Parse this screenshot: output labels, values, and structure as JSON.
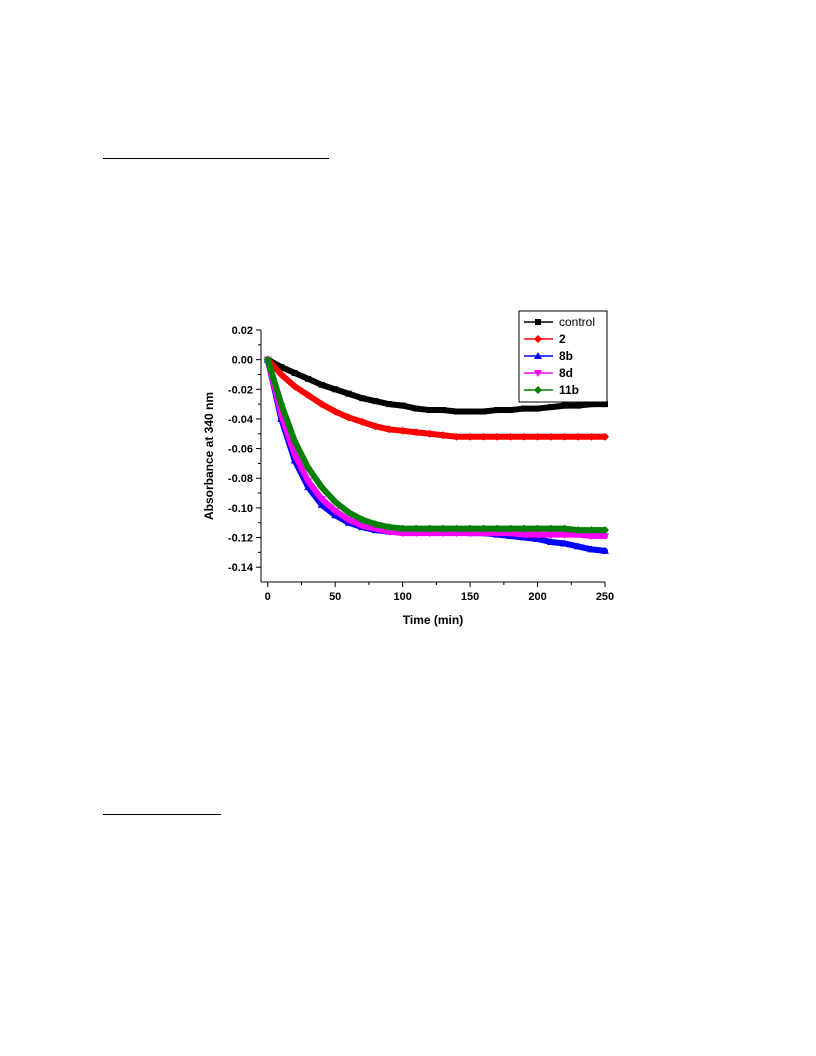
{
  "chart_data": {
    "type": "line",
    "xlabel": "Time (min)",
    "ylabel": "Absorbance at 340 nm",
    "xlim": [
      -5,
      250
    ],
    "ylim": [
      -0.15,
      0.02
    ],
    "x_ticks": [
      0,
      50,
      100,
      150,
      200,
      250
    ],
    "x_tick_labels": [
      "0",
      "50",
      "100",
      "150",
      "200",
      "250"
    ],
    "y_ticks": [
      0.02,
      0.0,
      -0.02,
      -0.04,
      -0.06,
      -0.08,
      -0.1,
      -0.12,
      -0.14
    ],
    "y_tick_labels": [
      "0.02",
      "0.00",
      "-0.02",
      "-0.04",
      "-0.06",
      "-0.08",
      "-0.10",
      "-0.12",
      "-0.14"
    ],
    "grid": false,
    "legend_position": "top-right",
    "x": [
      0,
      10,
      20,
      30,
      40,
      50,
      60,
      70,
      80,
      90,
      100,
      110,
      120,
      130,
      140,
      150,
      160,
      170,
      180,
      190,
      200,
      210,
      220,
      230,
      240,
      250
    ],
    "series": [
      {
        "name": "control",
        "color": "#000000",
        "marker": "square",
        "values": [
          0.0,
          -0.005,
          -0.009,
          -0.013,
          -0.017,
          -0.02,
          -0.023,
          -0.026,
          -0.028,
          -0.03,
          -0.031,
          -0.033,
          -0.034,
          -0.034,
          -0.035,
          -0.035,
          -0.035,
          -0.034,
          -0.034,
          -0.033,
          -0.033,
          -0.032,
          -0.031,
          -0.031,
          -0.03,
          -0.03
        ]
      },
      {
        "name": "2",
        "color": "#ff0000",
        "marker": "diamond",
        "values": [
          0.0,
          -0.01,
          -0.018,
          -0.024,
          -0.03,
          -0.035,
          -0.039,
          -0.042,
          -0.045,
          -0.047,
          -0.048,
          -0.049,
          -0.05,
          -0.051,
          -0.052,
          -0.052,
          -0.052,
          -0.052,
          -0.052,
          -0.052,
          -0.052,
          -0.052,
          -0.052,
          -0.052,
          -0.052,
          -0.052
        ]
      },
      {
        "name": "8b",
        "color": "#0000ff",
        "marker": "triangle-up",
        "values": [
          0.0,
          -0.04,
          -0.068,
          -0.086,
          -0.098,
          -0.105,
          -0.11,
          -0.113,
          -0.115,
          -0.116,
          -0.116,
          -0.116,
          -0.116,
          -0.116,
          -0.116,
          -0.117,
          -0.117,
          -0.118,
          -0.119,
          -0.12,
          -0.121,
          -0.123,
          -0.124,
          -0.126,
          -0.128,
          -0.129
        ]
      },
      {
        "name": "8d",
        "color": "#ff00ff",
        "marker": "triangle-down",
        "values": [
          0.0,
          -0.037,
          -0.064,
          -0.082,
          -0.094,
          -0.102,
          -0.108,
          -0.112,
          -0.114,
          -0.116,
          -0.117,
          -0.117,
          -0.117,
          -0.117,
          -0.117,
          -0.117,
          -0.117,
          -0.117,
          -0.117,
          -0.118,
          -0.118,
          -0.118,
          -0.118,
          -0.118,
          -0.119,
          -0.119
        ]
      },
      {
        "name": "11b",
        "color": "#008000",
        "marker": "diamond",
        "values": [
          0.0,
          -0.03,
          -0.055,
          -0.073,
          -0.086,
          -0.096,
          -0.103,
          -0.108,
          -0.111,
          -0.113,
          -0.114,
          -0.114,
          -0.114,
          -0.114,
          -0.114,
          -0.114,
          -0.114,
          -0.114,
          -0.114,
          -0.114,
          -0.114,
          -0.114,
          -0.114,
          -0.115,
          -0.115,
          -0.115
        ]
      }
    ]
  }
}
